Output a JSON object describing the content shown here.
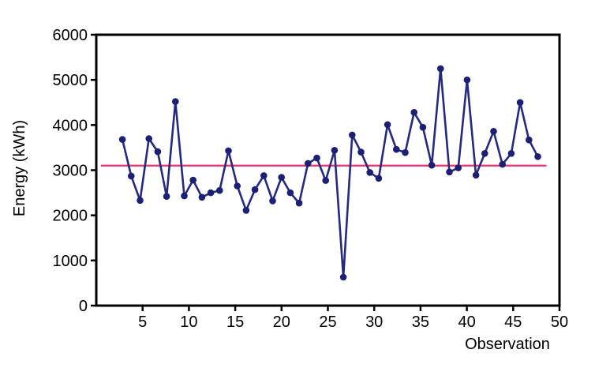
{
  "chart_data": {
    "type": "line",
    "title": "",
    "xlabel": "Observation",
    "ylabel": "Energy (kWh)",
    "xlim": [
      0,
      50
    ],
    "ylim": [
      0,
      6000
    ],
    "x_ticks": [
      5,
      10,
      15,
      20,
      25,
      30,
      35,
      40,
      45,
      50
    ],
    "y_ticks": [
      0,
      1000,
      2000,
      3000,
      4000,
      5000,
      6000
    ],
    "grid": false,
    "frame": "box",
    "legend": "none",
    "point_color": "#1c1f73",
    "line_color": "#232a80",
    "axis_color": "#000000",
    "series": [
      {
        "name": "Energy (kWh)",
        "marker": "circle",
        "x": [
          1,
          2,
          3,
          4,
          5,
          6,
          7,
          8,
          9,
          10,
          11,
          12,
          13,
          14,
          15,
          16,
          17,
          18,
          19,
          20,
          21,
          22,
          23,
          24,
          25,
          26,
          27,
          28,
          29,
          30,
          31,
          32,
          33,
          34,
          35,
          36,
          37,
          38,
          39,
          40,
          41,
          42,
          43,
          44,
          45,
          46,
          47,
          48
        ],
        "values": [
          3680,
          2870,
          2330,
          3700,
          3410,
          2420,
          4520,
          2430,
          2780,
          2400,
          2500,
          2550,
          3430,
          2650,
          2110,
          2570,
          2880,
          2320,
          2840,
          2500,
          2270,
          3150,
          3270,
          2770,
          3440,
          630,
          3780,
          3400,
          2950,
          2820,
          4010,
          3460,
          3390,
          4280,
          3950,
          3110,
          5250,
          2960,
          3050,
          5000,
          2890,
          3370,
          3860,
          3130,
          3370,
          4500,
          3670,
          3300
        ]
      }
    ],
    "reference_line": {
      "value": 3100,
      "color": "#f5306f",
      "x_span": [
        0.5,
        48.6
      ]
    },
    "plot_x_range": [
      2.82,
      47.66
    ]
  }
}
